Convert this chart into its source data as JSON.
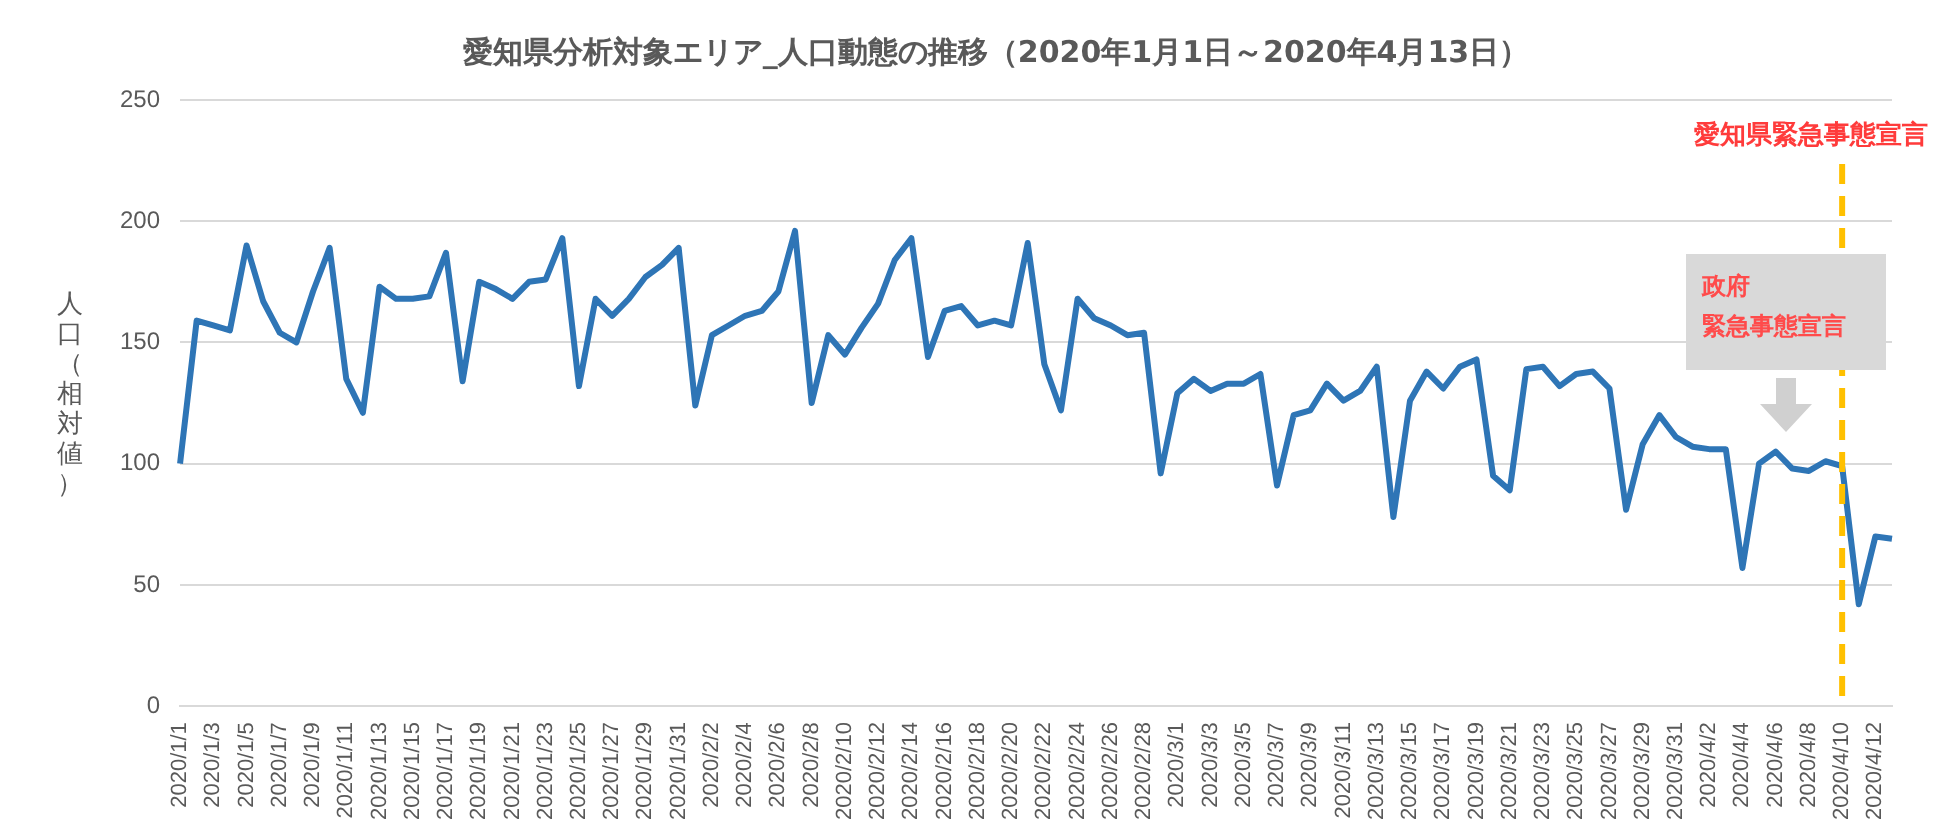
{
  "chart_data": {
    "type": "line",
    "title": "愛知県分析対象エリア_人口動態の推移（2020年1月1日～2020年4月13日）",
    "ylabel": "人口（相対値）",
    "categories": [
      "2020/1/1",
      null,
      "2020/1/3",
      null,
      "2020/1/5",
      null,
      "2020/1/7",
      null,
      "2020/1/9",
      null,
      "2020/1/11",
      null,
      "2020/1/13",
      null,
      "2020/1/15",
      null,
      "2020/1/17",
      null,
      "2020/1/19",
      null,
      "2020/1/21",
      null,
      "2020/1/23",
      null,
      "2020/1/25",
      null,
      "2020/1/27",
      null,
      "2020/1/29",
      null,
      "2020/1/31",
      null,
      "2020/2/2",
      null,
      "2020/2/4",
      null,
      "2020/2/6",
      null,
      "2020/2/8",
      null,
      "2020/2/10",
      null,
      "2020/2/12",
      null,
      "2020/2/14",
      null,
      "2020/2/16",
      null,
      "2020/2/18",
      null,
      "2020/2/20",
      null,
      "2020/2/22",
      null,
      "2020/2/24",
      null,
      "2020/2/26",
      null,
      "2020/2/28",
      null,
      "2020/3/1",
      null,
      "2020/3/3",
      null,
      "2020/3/5",
      null,
      "2020/3/7",
      null,
      "2020/3/9",
      null,
      "2020/3/11",
      null,
      "2020/3/13",
      null,
      "2020/3/15",
      null,
      "2020/3/17",
      null,
      "2020/3/19",
      null,
      "2020/3/21",
      null,
      "2020/3/23",
      null,
      "2020/3/25",
      null,
      "2020/3/27",
      null,
      "2020/3/29",
      null,
      "2020/3/31",
      null,
      "2020/4/2",
      null,
      "2020/4/4",
      null,
      "2020/4/6",
      null,
      "2020/4/8",
      null,
      "2020/4/10",
      null,
      "2020/4/12",
      null
    ],
    "series": [
      {
        "color": "#2e75b6",
        "values": [
          100,
          159,
          157,
          155,
          190,
          167,
          154,
          150,
          171,
          189,
          135,
          121,
          173,
          168,
          168,
          169,
          187,
          134,
          175,
          172,
          168,
          175,
          176,
          193,
          132,
          168,
          161,
          168,
          177,
          182,
          189,
          124,
          153,
          157,
          161,
          163,
          171,
          196,
          125,
          153,
          145,
          156,
          166,
          184,
          193,
          144,
          163,
          165,
          157,
          159,
          157,
          191,
          141,
          122,
          168,
          160,
          157,
          153,
          154,
          96,
          129,
          135,
          130,
          133,
          133,
          137,
          91,
          120,
          122,
          133,
          126,
          130,
          140,
          78,
          126,
          138,
          131,
          140,
          143,
          95,
          89,
          139,
          140,
          132,
          137,
          138,
          131,
          81,
          108,
          120,
          111,
          107,
          106,
          106,
          57,
          100,
          105,
          98,
          97,
          101,
          99,
          42,
          70,
          69
        ]
      }
    ],
    "ylim": [
      0,
      250
    ],
    "yticks": [
      0,
      50,
      100,
      150,
      200,
      250
    ],
    "grid": "y",
    "legend": false,
    "marker": "none",
    "line_style": "solid",
    "ref_lines": [
      {
        "axis": "x",
        "value": "2020/4/10",
        "label": "愛知県緊急事態宣言",
        "color": "#ffc000",
        "line_style": "dashed"
      }
    ],
    "annotations": [
      "政府",
      "緊急事態宣言"
    ]
  }
}
